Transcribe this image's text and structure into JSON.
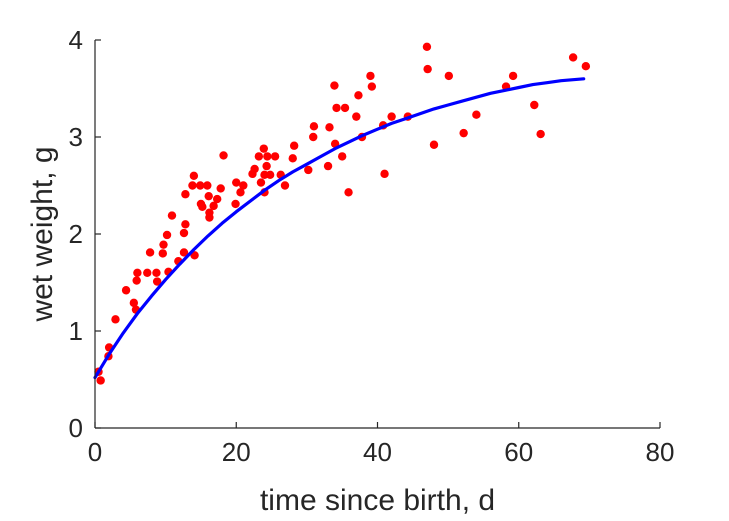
{
  "chart_data": {
    "type": "scatter",
    "xlabel": "time since birth, d",
    "ylabel": "wet weight, g",
    "xlim": [
      0,
      80
    ],
    "ylim": [
      0,
      4
    ],
    "xticks": [
      "0",
      "20",
      "40",
      "60",
      "80"
    ],
    "yticks": [
      "0",
      "1",
      "2",
      "3",
      "4"
    ],
    "grid": false,
    "legend": "none",
    "colors": {
      "points": "#ff0000",
      "fit_line": "#0000ff",
      "axes": "#262626"
    },
    "series": [
      {
        "type": "scatter",
        "points": [
          [
            0.5,
            0.58
          ],
          [
            0.8,
            0.49
          ],
          [
            1.9,
            0.74
          ],
          [
            2.0,
            0.83
          ],
          [
            2.9,
            1.12
          ],
          [
            4.4,
            1.42
          ],
          [
            5.5,
            1.29
          ],
          [
            5.8,
            1.22
          ],
          [
            5.9,
            1.52
          ],
          [
            6.0,
            1.6
          ],
          [
            7.4,
            1.6
          ],
          [
            7.8,
            1.81
          ],
          [
            8.7,
            1.6
          ],
          [
            8.8,
            1.51
          ],
          [
            9.6,
            1.8
          ],
          [
            9.7,
            1.89
          ],
          [
            10.2,
            1.99
          ],
          [
            10.4,
            1.61
          ],
          [
            10.9,
            2.19
          ],
          [
            11.8,
            1.72
          ],
          [
            12.6,
            1.81
          ],
          [
            12.6,
            2.01
          ],
          [
            12.8,
            2.1
          ],
          [
            12.8,
            2.41
          ],
          [
            13.8,
            2.5
          ],
          [
            14.0,
            2.6
          ],
          [
            14.1,
            1.78
          ],
          [
            14.9,
            2.5
          ],
          [
            15.0,
            2.31
          ],
          [
            15.2,
            2.28
          ],
          [
            15.9,
            2.5
          ],
          [
            16.1,
            2.39
          ],
          [
            16.2,
            2.22
          ],
          [
            16.2,
            2.17
          ],
          [
            16.8,
            2.29
          ],
          [
            17.3,
            2.36
          ],
          [
            17.8,
            2.47
          ],
          [
            18.2,
            2.81
          ],
          [
            19.9,
            2.31
          ],
          [
            20.0,
            2.53
          ],
          [
            20.6,
            2.43
          ],
          [
            21.0,
            2.5
          ],
          [
            22.3,
            2.62
          ],
          [
            22.6,
            2.67
          ],
          [
            23.2,
            2.8
          ],
          [
            23.5,
            2.53
          ],
          [
            23.9,
            2.88
          ],
          [
            24.0,
            2.43
          ],
          [
            24.0,
            2.61
          ],
          [
            24.3,
            2.7
          ],
          [
            24.4,
            2.8
          ],
          [
            24.8,
            2.61
          ],
          [
            25.5,
            2.8
          ],
          [
            26.3,
            2.61
          ],
          [
            26.9,
            2.5
          ],
          [
            28.0,
            2.78
          ],
          [
            28.2,
            2.91
          ],
          [
            30.2,
            2.66
          ],
          [
            30.9,
            3.0
          ],
          [
            31.0,
            3.11
          ],
          [
            33.0,
            2.7
          ],
          [
            33.2,
            3.1
          ],
          [
            33.9,
            3.53
          ],
          [
            34.0,
            2.93
          ],
          [
            34.2,
            3.3
          ],
          [
            35.0,
            2.8
          ],
          [
            35.4,
            3.3
          ],
          [
            35.9,
            2.43
          ],
          [
            37.0,
            3.21
          ],
          [
            37.3,
            3.43
          ],
          [
            37.8,
            3.0
          ],
          [
            39.0,
            3.63
          ],
          [
            39.2,
            3.52
          ],
          [
            40.8,
            3.12
          ],
          [
            41.0,
            2.62
          ],
          [
            42.0,
            3.21
          ],
          [
            44.3,
            3.21
          ],
          [
            47.0,
            3.93
          ],
          [
            47.1,
            3.7
          ],
          [
            48.0,
            2.92
          ],
          [
            50.1,
            3.63
          ],
          [
            52.2,
            3.04
          ],
          [
            54.0,
            3.23
          ],
          [
            58.2,
            3.52
          ],
          [
            59.2,
            3.63
          ],
          [
            62.2,
            3.33
          ],
          [
            63.1,
            3.03
          ],
          [
            67.7,
            3.82
          ],
          [
            69.5,
            3.73
          ]
        ]
      },
      {
        "type": "line",
        "points": [
          [
            0,
            0.52
          ],
          [
            2,
            0.76
          ],
          [
            4,
            0.98
          ],
          [
            6,
            1.18
          ],
          [
            8,
            1.36
          ],
          [
            10,
            1.53
          ],
          [
            12,
            1.69
          ],
          [
            14,
            1.84
          ],
          [
            16,
            1.98
          ],
          [
            18,
            2.11
          ],
          [
            20,
            2.23
          ],
          [
            22,
            2.34
          ],
          [
            24,
            2.45
          ],
          [
            26,
            2.55
          ],
          [
            28,
            2.64
          ],
          [
            30,
            2.72
          ],
          [
            32,
            2.8
          ],
          [
            34,
            2.88
          ],
          [
            36,
            2.95
          ],
          [
            38,
            3.02
          ],
          [
            40,
            3.08
          ],
          [
            42,
            3.14
          ],
          [
            44,
            3.19
          ],
          [
            46,
            3.24
          ],
          [
            48,
            3.29
          ],
          [
            50,
            3.33
          ],
          [
            52,
            3.37
          ],
          [
            54,
            3.41
          ],
          [
            56,
            3.45
          ],
          [
            58,
            3.48
          ],
          [
            60,
            3.51
          ],
          [
            62,
            3.54
          ],
          [
            64,
            3.56
          ],
          [
            66,
            3.58
          ],
          [
            69.2,
            3.6
          ]
        ]
      }
    ]
  }
}
